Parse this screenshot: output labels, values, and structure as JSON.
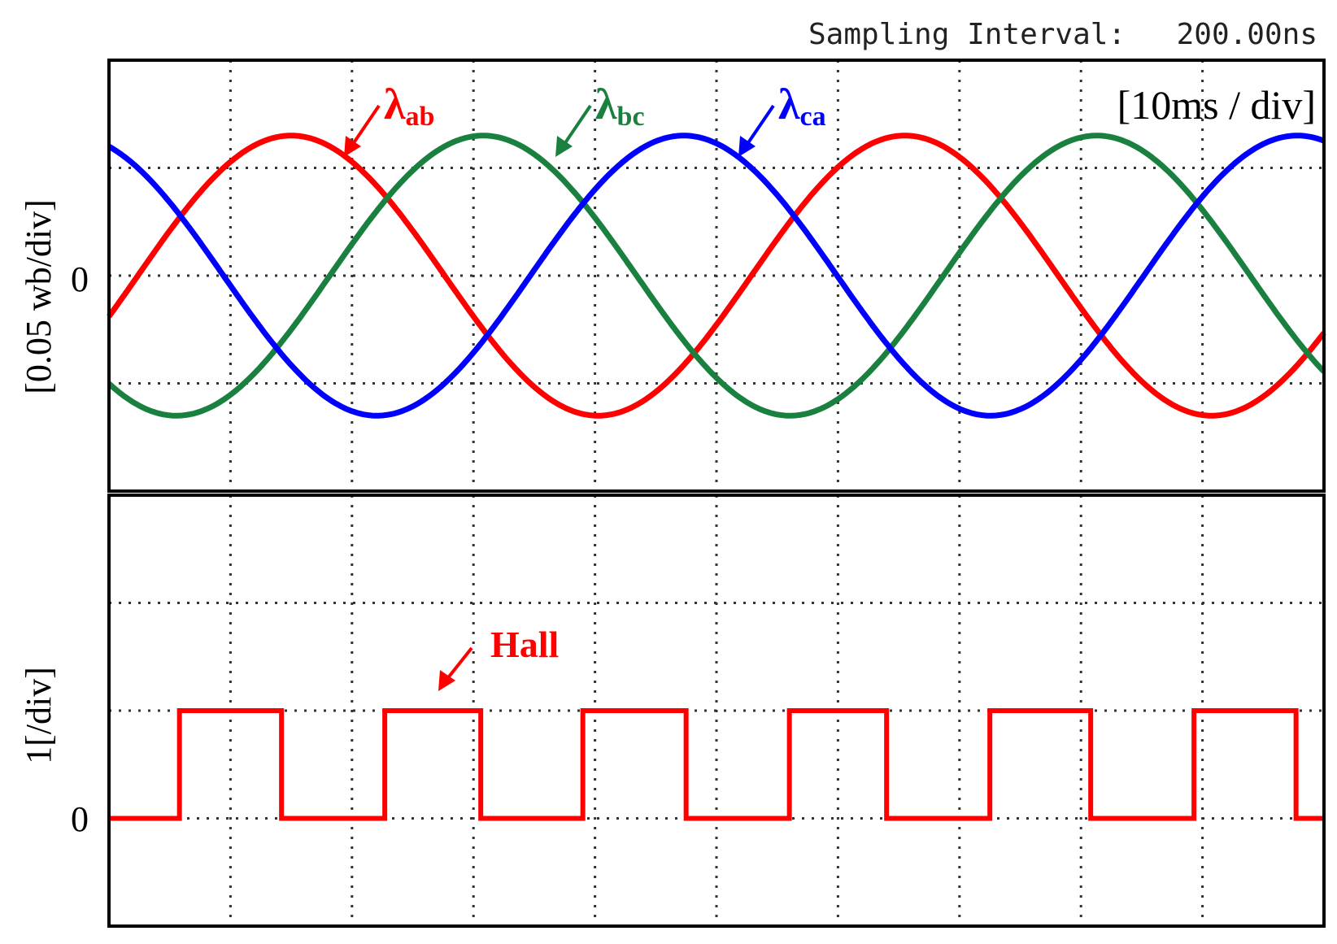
{
  "header": {
    "sampling_label": "Sampling Interval:",
    "sampling_value": "200.00ns"
  },
  "chart_data": [
    {
      "type": "line",
      "title": "",
      "time_scale_label": "[10ms / div]",
      "ylabel": "[0.05 wb/div]",
      "zero_label": "0",
      "time_div_ms": 10,
      "xlim_div": [
        0,
        10
      ],
      "ylim_div": [
        -2,
        2
      ],
      "grid": true,
      "grid_style": "dotted",
      "period_div": 5.05,
      "amplitude_div": 1.3,
      "series": [
        {
          "name": "λab",
          "name_main": "λ",
          "name_sub": "ab",
          "color": "#ff0000",
          "peak_at_div": 1.5
        },
        {
          "name": "λbc",
          "name_main": "λ",
          "name_sub": "bc",
          "color": "#1a8040",
          "peak_at_div": 3.08
        },
        {
          "name": "λca",
          "name_main": "λ",
          "name_sub": "ca",
          "color": "#0000ff",
          "peak_at_div": 4.73
        }
      ]
    },
    {
      "type": "line",
      "title": "",
      "ylabel": "1[/div]",
      "zero_label": "0",
      "xlim_div": [
        0,
        10
      ],
      "ylim_div": [
        -1,
        3
      ],
      "grid": true,
      "grid_style": "dotted",
      "series": [
        {
          "name": "Hall",
          "color": "#ff0000",
          "levels": [
            0,
            1
          ],
          "rising_edges_div": [
            0.58,
            2.27,
            3.9,
            5.6,
            7.25,
            8.93
          ],
          "falling_edges_div": [
            1.42,
            3.06,
            4.75,
            6.4,
            8.08,
            9.77
          ]
        }
      ]
    }
  ]
}
